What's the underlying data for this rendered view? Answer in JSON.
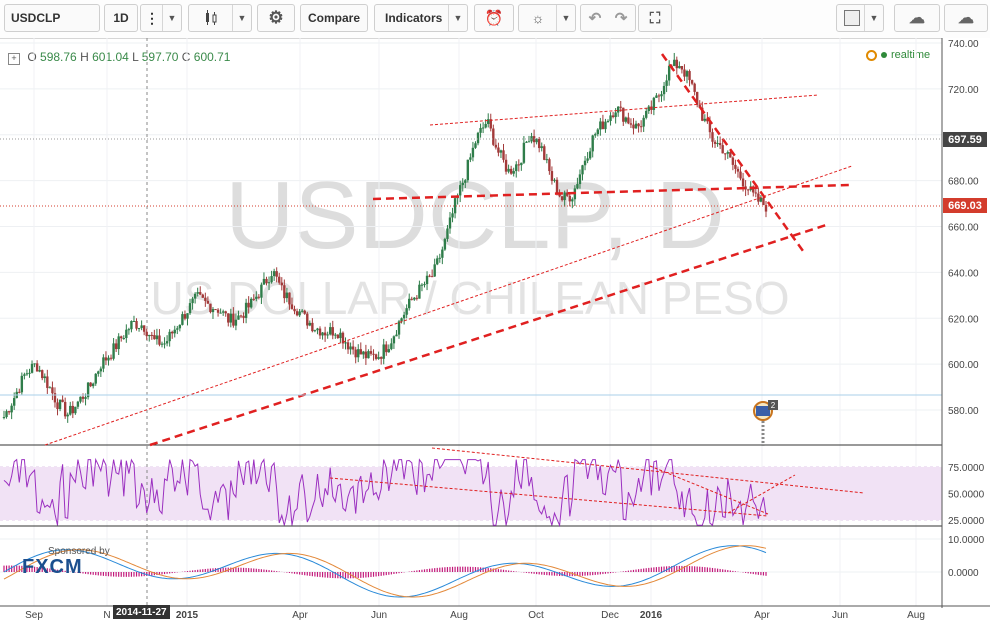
{
  "toolbar": {
    "symbol": "USDCLP",
    "interval": "1D",
    "compare_label": "Compare",
    "indicators_label": "Indicators"
  },
  "legend": {
    "open_label": "O",
    "open": "598.76",
    "high_label": "H",
    "high": "601.04",
    "low_label": "L",
    "low": "597.70",
    "close_label": "C",
    "close": "600.71",
    "realtime_label": "realtime"
  },
  "watermark": {
    "line1": "USDCLP, D",
    "line2": "US DOLLAR / CHILEAN PESO"
  },
  "price_axis": {
    "ticks": [
      "740.00",
      "720.00",
      "700.00",
      "680.00",
      "660.00",
      "640.00",
      "620.00",
      "600.00",
      "580.00"
    ],
    "tag_high": "697.59",
    "tag_last": "669.03"
  },
  "rsi_axis": {
    "ticks": [
      "75.0000",
      "50.0000",
      "25.0000"
    ]
  },
  "macd_axis": {
    "ticks": [
      "10.0000",
      "0.0000"
    ]
  },
  "time_axis": {
    "labels": [
      "Sep",
      "N",
      "2015",
      "Apr",
      "Jun",
      "Aug",
      "Oct",
      "Dec",
      "2016",
      "Apr",
      "Jun",
      "Aug"
    ],
    "crosshair_date": "2014-11-27"
  },
  "sponsor": {
    "label": "Sponsored by",
    "brand": "FXCM"
  },
  "colors": {
    "up": "#2f7d4a",
    "down": "#a33a3a",
    "trend": "#e02020",
    "rsi": "#9b30c0",
    "last": "#d33c2c"
  },
  "chart_data": {
    "type": "candlestick",
    "symbol": "USDCLP",
    "interval": "1D",
    "ylim": [
      570,
      742
    ],
    "x_labels": [
      "Sep",
      "N",
      "2015",
      "Apr",
      "Jun",
      "Aug",
      "Oct",
      "Dec",
      "2016",
      "Apr",
      "Jun",
      "Aug"
    ],
    "closes": [
      577,
      586,
      596,
      600,
      592,
      583,
      578,
      584,
      590,
      600,
      605,
      612,
      618,
      617,
      610,
      609,
      616,
      623,
      629,
      626,
      624,
      619,
      621,
      626,
      633,
      641,
      631,
      626,
      620,
      616,
      614,
      615,
      609,
      605,
      603,
      604,
      610,
      620,
      628,
      634,
      639,
      652,
      669,
      683,
      698,
      706,
      693,
      684,
      688,
      701,
      695,
      681,
      672,
      674,
      688,
      700,
      706,
      712,
      707,
      703,
      709,
      717,
      729,
      731,
      722,
      709,
      698,
      694,
      686,
      679,
      672,
      669
    ],
    "volume_points": 72,
    "indicators": {
      "rsi": {
        "ticks": [
          75,
          50,
          25
        ]
      },
      "macd": {
        "ticks": [
          10,
          0
        ]
      }
    }
  }
}
